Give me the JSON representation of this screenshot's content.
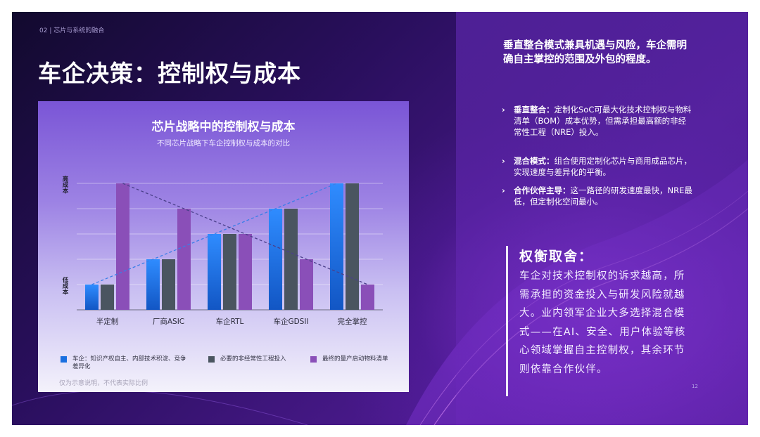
{
  "header": {
    "section_label": "02 | 芯片与系统的融合",
    "title": "车企决策：控制权与成本"
  },
  "chart_data": {
    "type": "bar",
    "title": "芯片战略中的控制权与成本",
    "subtitle": "不同芯片战略下车企控制权与成本的对比",
    "categories": [
      "半定制",
      "厂商ASIC",
      "车企RTL",
      "车企GDSII",
      "完全掌控"
    ],
    "ylabel_top": "高成本",
    "ylabel_bottom": "低成本",
    "ylim": [
      0,
      5
    ],
    "grid": true,
    "series": [
      {
        "name": "车企：知识产权自主、内部技术积淀、竞争差异化",
        "values": [
          1,
          2,
          3,
          4,
          5
        ],
        "color": "#1a6fe0"
      },
      {
        "name": "必要的非经常性工程投入",
        "values": [
          1,
          2,
          3,
          4,
          5
        ],
        "color": "#4a5560"
      },
      {
        "name": "最终的量产启动物料清单",
        "values": [
          5,
          4,
          3,
          2,
          1
        ],
        "color": "#8a4fb8"
      }
    ],
    "trend_lines": true,
    "note": "仅为示意说明，不代表实际比例"
  },
  "right_panel": {
    "intro": "垂直整合模式兼具机遇与风险，车企需明确自主掌控的范围及外包的程度。",
    "bullets": [
      {
        "head": "垂直整合：",
        "body": "定制化SoC可最大化技术控制权与物料清单（BOM）成本优势，但需承担最高额的非经常性工程（NRE）投入。"
      },
      {
        "head": "混合模式：",
        "body": "组合使用定制化芯片与商用成品芯片，实现速度与差异化的平衡。"
      },
      {
        "head": "合作伙伴主导：",
        "body": "这一路径的研发速度最快，NRE最低，但定制化空间最小。"
      }
    ],
    "tradeoff_title": "权衡取舍：",
    "tradeoff_body": "车企对技术控制权的诉求越高，所需承担的资金投入与研发风险就越大。业内领军企业大多选择混合模式——在AI、安全、用户体验等核心领域掌握自主控制权，其余环节则依靠合作伙伴。"
  },
  "page_number": "12"
}
